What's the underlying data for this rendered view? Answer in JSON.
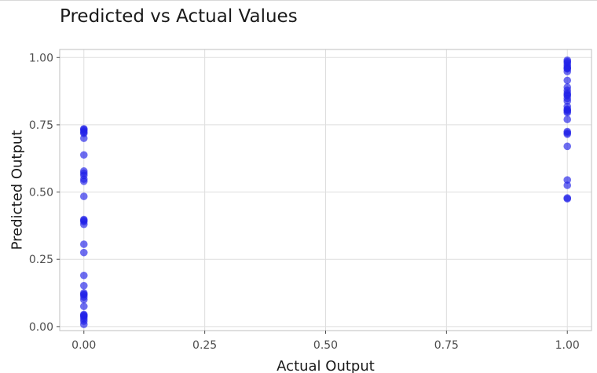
{
  "chart_data": {
    "type": "scatter",
    "title": "Predicted vs Actual Values",
    "xlabel": "Actual Output",
    "ylabel": "Predicted Output",
    "xlim": [
      -0.05,
      1.05
    ],
    "ylim": [
      -0.015,
      1.03
    ],
    "x_ticks": [
      0,
      0.25,
      0.5,
      0.75,
      1
    ],
    "x_tick_labels": [
      "0.00",
      "0.25",
      "0.50",
      "0.75",
      "1.00"
    ],
    "y_ticks": [
      0,
      0.25,
      0.5,
      0.75,
      1
    ],
    "y_tick_labels": [
      "0.00",
      "0.25",
      "0.50",
      "0.75",
      "1.00"
    ],
    "grid": true,
    "point_color": "#2020e8",
    "series": [
      {
        "x": [
          0,
          0,
          0,
          0,
          0,
          0,
          0,
          0,
          0,
          0,
          0,
          0,
          0,
          0,
          0,
          0,
          0,
          0,
          0,
          0,
          0,
          0,
          0,
          0,
          0,
          0,
          0,
          0,
          0,
          0,
          0,
          0,
          0,
          0
        ],
        "y": [
          0.733,
          0.727,
          0.718,
          0.7,
          0.638,
          0.578,
          0.562,
          0.548,
          0.54,
          0.484,
          0.398,
          0.39,
          0.38,
          0.306,
          0.275,
          0.19,
          0.152,
          0.125,
          0.118,
          0.11,
          0.1,
          0.075,
          0.045,
          0.04,
          0.035,
          0.028,
          0.02,
          0.008,
          0.735,
          0.722,
          0.57,
          0.395,
          0.12,
          0.042
        ]
      },
      {
        "x": [
          1,
          1,
          1,
          1,
          1,
          1,
          1,
          1,
          1,
          1,
          1,
          1,
          1,
          1,
          1,
          1,
          1,
          1,
          1,
          1,
          1,
          1,
          1,
          1,
          1,
          1,
          1,
          1,
          1,
          1
        ],
        "y": [
          0.99,
          0.98,
          0.972,
          0.965,
          0.958,
          0.948,
          0.915,
          0.89,
          0.878,
          0.868,
          0.858,
          0.848,
          0.838,
          0.818,
          0.808,
          0.8,
          0.795,
          0.77,
          0.725,
          0.72,
          0.715,
          0.67,
          0.545,
          0.525,
          0.478,
          0.475,
          0.985,
          0.96,
          0.862,
          0.805
        ]
      }
    ]
  }
}
